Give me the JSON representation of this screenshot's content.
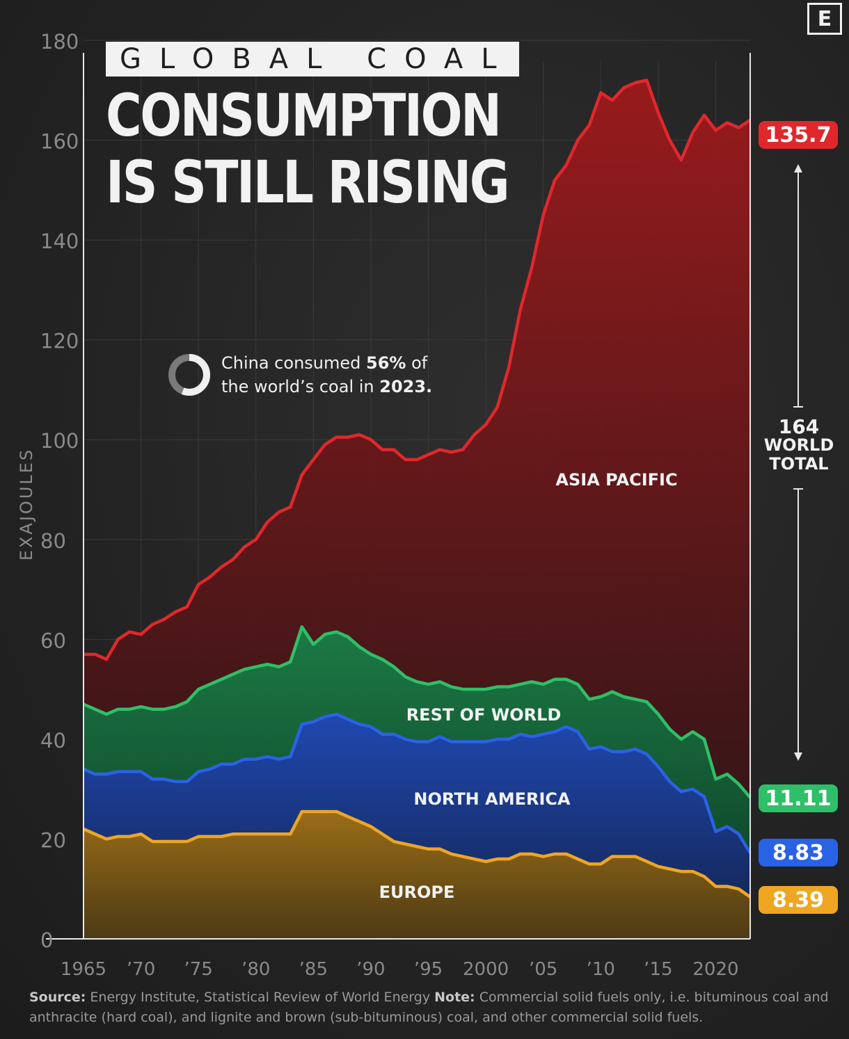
{
  "title": {
    "kicker": "GLOBAL COAL",
    "line1": "CONSUMPTION",
    "line2": "IS STILL RISING"
  },
  "brand": "E",
  "callout": {
    "prefix": "China consumed ",
    "highlight": "56%",
    "suffix": " of",
    "line2_prefix": "the world’s coal in ",
    "year": "2023.",
    "share": 0.56
  },
  "world_total": {
    "value": "164",
    "label_line1": "WORLD",
    "label_line2": "TOTAL"
  },
  "source": {
    "source_label": "Source:",
    "source_text": " Energy Institute, Statistical Review of World Energy ",
    "note_label": "Note:",
    "note_text": " Commercial solid fuels only, i.e. bituminous coal and anthracite (hard coal), and lignite and brown (sub-bituminous) coal, and other commercial solid fuels."
  },
  "colors": {
    "asia": "#e0282c",
    "row": "#2fbf68",
    "na": "#2a62e6",
    "europe": "#eea623",
    "axis": "#e8e8e8",
    "grid": "#3a3a3a",
    "tick": "#8a8a8a"
  },
  "chart_data": {
    "type": "area",
    "stacked": true,
    "title": "GLOBAL COAL CONSUMPTION IS STILL RISING",
    "ylabel": "EXAJOULES",
    "ylim": [
      0,
      180
    ],
    "yticks": [
      0,
      20,
      40,
      60,
      80,
      100,
      120,
      140,
      160,
      180
    ],
    "xlim": [
      1965,
      2023
    ],
    "xtick_values": [
      1965,
      1970,
      1975,
      1980,
      1985,
      1990,
      1995,
      2000,
      2005,
      2010,
      2015,
      2020
    ],
    "xtick_labels": [
      "1965",
      "’70",
      "’75",
      "’80",
      "’85",
      "’90",
      "’95",
      "2000",
      "’05",
      "’10",
      "’15",
      "2020"
    ],
    "x": [
      1965,
      1966,
      1967,
      1968,
      1969,
      1970,
      1971,
      1972,
      1973,
      1974,
      1975,
      1976,
      1977,
      1978,
      1979,
      1980,
      1981,
      1982,
      1983,
      1984,
      1985,
      1986,
      1987,
      1988,
      1989,
      1990,
      1991,
      1992,
      1993,
      1994,
      1995,
      1996,
      1997,
      1998,
      1999,
      2000,
      2001,
      2002,
      2003,
      2004,
      2005,
      2006,
      2007,
      2008,
      2009,
      2010,
      2011,
      2012,
      2013,
      2014,
      2015,
      2016,
      2017,
      2018,
      2019,
      2020,
      2021,
      2022,
      2023
    ],
    "series": [
      {
        "name": "Europe",
        "key": "europe",
        "end_label": "8.39",
        "values": [
          22,
          21,
          20,
          20.5,
          20.5,
          21,
          19.5,
          19.5,
          19.5,
          19.5,
          20.5,
          20.5,
          20.5,
          21,
          21,
          21,
          21,
          21,
          21,
          25.5,
          25.5,
          25.5,
          25.5,
          24.5,
          23.5,
          22.5,
          21,
          19.5,
          19,
          18.5,
          18,
          18,
          17,
          16.5,
          16,
          15.5,
          16,
          16,
          17,
          17,
          16.5,
          17,
          17,
          16,
          15,
          15,
          16.5,
          16.5,
          16.5,
          15.5,
          14.5,
          14,
          13.5,
          13.5,
          12.5,
          10.5,
          10.5,
          10,
          8.39
        ]
      },
      {
        "name": "North America",
        "key": "na",
        "end_label": "8.83",
        "values": [
          12,
          12,
          13,
          13,
          13,
          12.5,
          12.5,
          12.5,
          12,
          12,
          13,
          13.5,
          14.5,
          14,
          15,
          15,
          15.5,
          15,
          15.5,
          17.5,
          18,
          19,
          19.5,
          19.5,
          19.5,
          20,
          20,
          21.5,
          21,
          21,
          21.5,
          22.5,
          22.5,
          23,
          23.5,
          24,
          24,
          24,
          24,
          23.5,
          24.5,
          24.5,
          25.5,
          25.5,
          23,
          23.5,
          21,
          21,
          21.5,
          21.5,
          20,
          17.5,
          16,
          16.5,
          16,
          11,
          12,
          11,
          8.83
        ]
      },
      {
        "name": "Rest of World",
        "key": "row",
        "end_label": "11.11",
        "values": [
          13,
          13,
          12,
          12.5,
          12.5,
          13,
          14,
          14,
          15,
          16,
          16.5,
          17,
          17,
          18,
          18,
          18.5,
          18.5,
          18.5,
          19,
          19.5,
          15.5,
          16.5,
          16.5,
          16.5,
          15.5,
          14.5,
          15,
          13.5,
          12.5,
          12,
          11.5,
          11,
          11,
          10.5,
          10.5,
          10.5,
          10.5,
          10.5,
          10,
          11,
          10,
          10.5,
          9.5,
          9.5,
          10,
          10,
          12,
          11,
          10,
          10.5,
          10.5,
          10.5,
          10.5,
          11.5,
          11.5,
          10.5,
          10.5,
          10,
          11.11
        ]
      },
      {
        "name": "Asia Pacific",
        "key": "asia",
        "end_label": "135.7",
        "values": [
          10,
          11,
          11,
          14,
          15.5,
          14.5,
          17,
          18,
          19,
          19,
          21,
          21.5,
          22.5,
          23,
          24.5,
          25.5,
          28.5,
          31,
          31,
          30.5,
          37,
          38,
          39,
          40,
          42.5,
          43,
          42,
          43.5,
          43.5,
          44.5,
          46,
          46.5,
          47,
          48,
          51,
          53,
          56,
          64,
          75,
          83,
          94,
          100,
          103,
          109,
          115,
          121,
          118.5,
          122,
          123.5,
          124.5,
          120.5,
          118,
          116,
          120,
          125,
          130,
          130.5,
          131.5,
          135.7
        ]
      }
    ],
    "annotations": {
      "world_total": "164",
      "china_share_2023": "56%",
      "region_labels": [
        "ASIA PACIFIC",
        "REST OF WORLD",
        "NORTH AMERICA",
        "EUROPE"
      ]
    }
  }
}
